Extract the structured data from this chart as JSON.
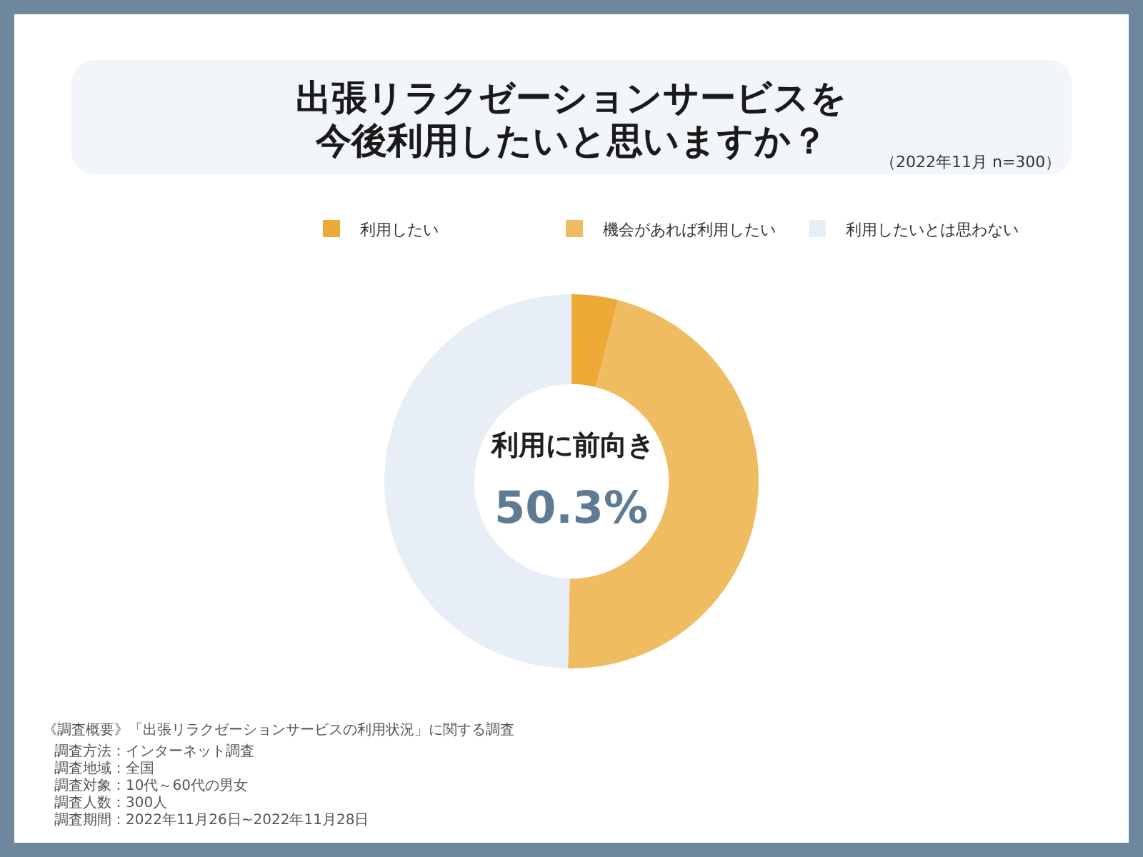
{
  "chart_data": {
    "type": "donut",
    "title": "出張リラクゼーションサービスを今後利用したいと思いますか？",
    "subtitle": "（2022年11月 n=300）",
    "categories": [
      "利用したい",
      "機会があれば利用したい",
      "利用したいとは思わない"
    ],
    "values": [
      4,
      46.3,
      49.7
    ],
    "colors": [
      "#eca935",
      "#efbc62",
      "#e8eef5"
    ],
    "legend": "top",
    "annotations": [
      "利用に前向き",
      "50.3%",
      "《調査概要》「出張リラクゼーションサービスの利用状況」に関する調査",
      "調査方法：インターネット調査",
      "調査地域：全国",
      "調査対象：10代～60代の男女",
      "調査人数：300人",
      "調査期間：2022年11月26日~2022年11月28日"
    ]
  }
}
